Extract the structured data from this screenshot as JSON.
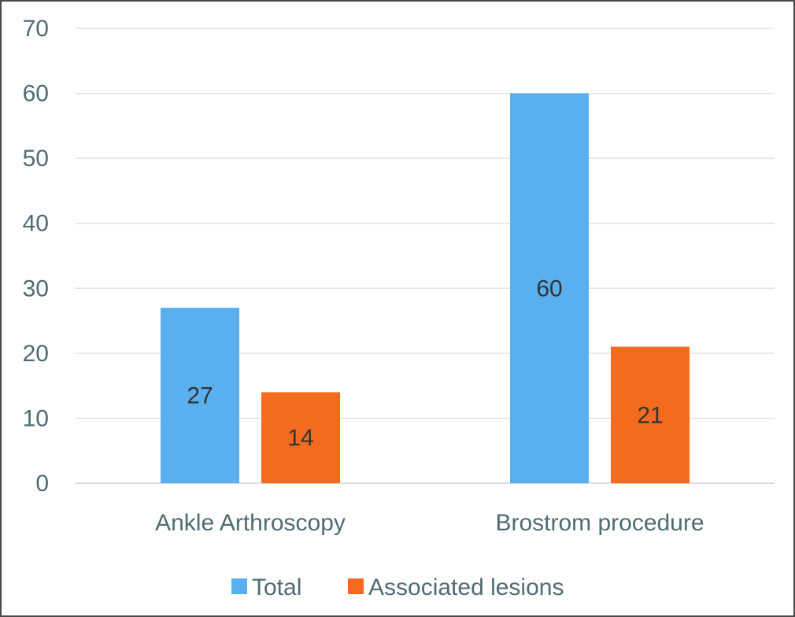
{
  "chart_data": {
    "type": "bar",
    "title": "",
    "xlabel": "",
    "ylabel": "",
    "categories": [
      "Ankle Arthroscopy",
      "Brostrom procedure"
    ],
    "series": [
      {
        "name": "Total",
        "values": [
          27,
          60
        ],
        "color": "#5ab0ee"
      },
      {
        "name": "Associated lesions",
        "values": [
          14,
          21
        ],
        "color": "#f46a1e"
      }
    ],
    "yticks": [
      0,
      10,
      20,
      30,
      40,
      50,
      60,
      70
    ],
    "ylim": [
      0,
      70
    ],
    "grid": true,
    "legend_position": "bottom",
    "data_labels": "centered inside bars"
  }
}
